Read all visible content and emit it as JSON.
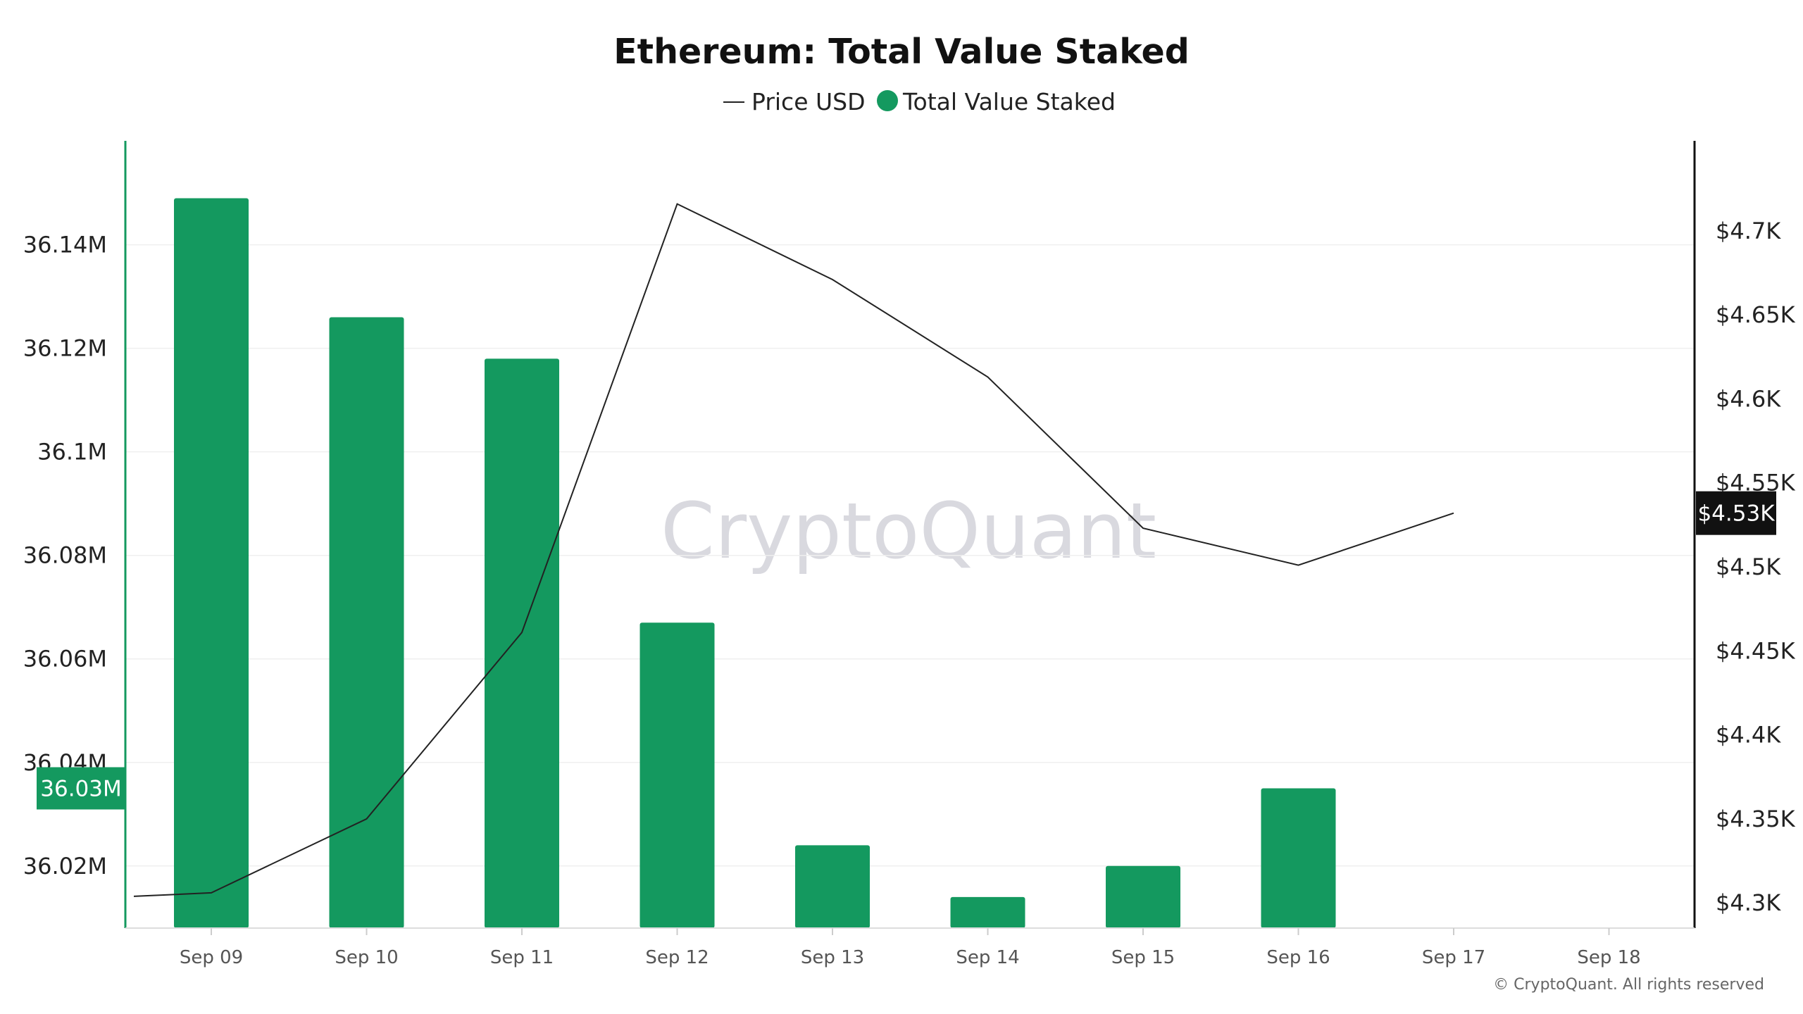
{
  "chart_data": {
    "type": "bar",
    "title": "Ethereum: Total Value Staked",
    "categories": [
      "Sep 09",
      "Sep 10",
      "Sep 11",
      "Sep 12",
      "Sep 13",
      "Sep 14",
      "Sep 15",
      "Sep 16",
      "Sep 17",
      "Sep 18"
    ],
    "series": [
      {
        "name": "Total Value Staked",
        "type": "bar",
        "axis": "left",
        "color": "#14995f",
        "values": [
          36149000,
          36126000,
          36118000,
          36067000,
          36024000,
          36014000,
          36020000,
          36035000,
          null,
          null
        ]
      },
      {
        "name": "Price USD",
        "type": "line",
        "axis": "right",
        "color": "#222222",
        "values": [
          4306,
          4350,
          4461,
          4716,
          4671,
          4613,
          4523,
          4501,
          4532,
          null
        ]
      }
    ],
    "y_left": {
      "ticks": [
        36020000,
        36040000,
        36060000,
        36080000,
        36100000,
        36120000,
        36140000
      ],
      "tick_labels": [
        "36.02M",
        "36.04M",
        "36.06M",
        "36.08M",
        "36.1M",
        "36.12M",
        "36.14M"
      ],
      "range": [
        36008000,
        36156000
      ],
      "current_label": "36.03M",
      "current_value": 36035000,
      "current_color": "#14995f"
    },
    "y_right": {
      "ticks": [
        4300,
        4350,
        4400,
        4450,
        4500,
        4550,
        4600,
        4650,
        4700
      ],
      "tick_labels": [
        "$4.3K",
        "$4.35K",
        "$4.4K",
        "$4.45K",
        "$4.5K",
        "$4.55K",
        "$4.6K",
        "$4.65K",
        "$4.7K"
      ],
      "range": [
        4285,
        4741
      ],
      "current_label": "$4.53K",
      "current_value": 4532,
      "current_color": "#111111"
    },
    "legend": {
      "position": "top-center",
      "items": [
        {
          "label": "Price USD",
          "marker": "line",
          "color": "#222222"
        },
        {
          "label": "Total Value Staked",
          "marker": "circle",
          "color": "#14995f"
        }
      ]
    },
    "grid": true
  },
  "watermark": "CryptoQuant",
  "copyright": "© CryptoQuant. All rights reserved"
}
